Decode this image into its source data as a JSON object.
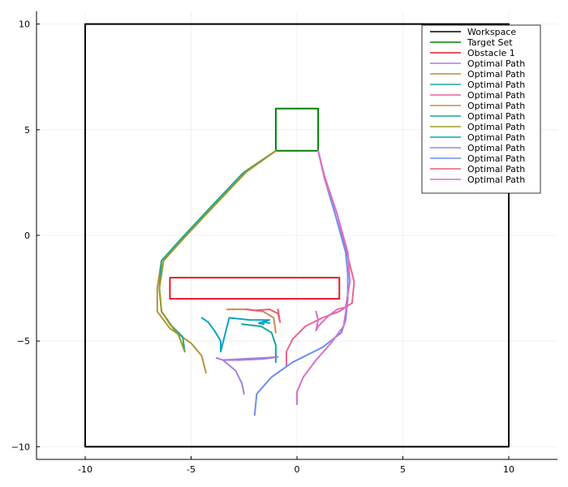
{
  "chart_data": {
    "type": "line",
    "xlim": [
      -12.3,
      12.3
    ],
    "ylim": [
      -10.6,
      10.6
    ],
    "grid": true,
    "legend_position": "top-right",
    "xticks": [
      -10,
      -5,
      0,
      5,
      10
    ],
    "yticks": [
      -10,
      -5,
      0,
      5,
      10
    ],
    "xtick_labels": [
      "-10",
      "-5",
      "0",
      "5",
      "10"
    ],
    "ytick_labels": [
      "−10",
      "−5",
      "0",
      "5",
      "10"
    ],
    "series": [
      {
        "name": "Workspace",
        "color": "#000000",
        "points": [
          [
            -10,
            -10
          ],
          [
            10,
            -10
          ],
          [
            10,
            10
          ],
          [
            -10,
            10
          ],
          [
            -10,
            -10
          ]
        ]
      },
      {
        "name": "Target Set",
        "color": "#008000",
        "points": [
          [
            -1,
            4
          ],
          [
            1,
            4
          ],
          [
            1,
            6
          ],
          [
            -1,
            6
          ],
          [
            -1,
            4
          ]
        ]
      },
      {
        "name": "Obstacle 1",
        "color": "#e8192a",
        "points": [
          [
            -6,
            -3
          ],
          [
            2,
            -3
          ],
          [
            2,
            -2
          ],
          [
            -6,
            -2
          ],
          [
            -6,
            -3
          ]
        ]
      },
      {
        "name": "Optimal Path",
        "color": "#a37fe0",
        "points": [
          [
            -2.5,
            -7.5
          ],
          [
            -2.6,
            -7.0
          ],
          [
            -2.9,
            -6.4
          ],
          [
            -3.5,
            -5.9
          ],
          [
            -2.8,
            -5.9
          ],
          [
            -1.6,
            -5.85
          ],
          [
            -0.9,
            -5.75
          ]
        ]
      },
      {
        "name": "Optimal Path",
        "color": "#b39438",
        "points": [
          [
            -1,
            4
          ],
          [
            -2.5,
            3.0
          ],
          [
            -4.2,
            1.2
          ],
          [
            -5.5,
            -0.3
          ],
          [
            -6.4,
            -1.2
          ],
          [
            -6.6,
            -2.5
          ],
          [
            -6.6,
            -3.6
          ],
          [
            -6.0,
            -4.4
          ],
          [
            -5.0,
            -5.1
          ],
          [
            -4.5,
            -5.7
          ],
          [
            -4.3,
            -6.5
          ]
        ]
      },
      {
        "name": "Optimal Path",
        "color": "#1ca99d",
        "points": [
          [
            -1,
            4
          ],
          [
            -2.6,
            2.9
          ],
          [
            -4.3,
            1.1
          ],
          [
            -5.6,
            -0.3
          ],
          [
            -6.4,
            -1.2
          ],
          [
            -6.5,
            -2.5
          ],
          [
            -6.4,
            -3.6
          ],
          [
            -5.9,
            -4.3
          ],
          [
            -5.4,
            -4.8
          ],
          [
            -5.3,
            -5.5
          ]
        ]
      },
      {
        "name": "Optimal Path",
        "color": "#e86496",
        "points": [
          [
            1,
            4
          ],
          [
            1.3,
            2.8
          ],
          [
            1.9,
            1.0
          ],
          [
            2.4,
            -1.0
          ],
          [
            2.7,
            -2.2
          ],
          [
            2.6,
            -3.2
          ],
          [
            2.0,
            -3.6
          ],
          [
            1.2,
            -3.9
          ],
          [
            0.4,
            -4.3
          ],
          [
            -0.2,
            -4.9
          ],
          [
            -0.5,
            -5.5
          ],
          [
            -0.5,
            -6.2
          ]
        ]
      },
      {
        "name": "Optimal Path",
        "color": "#c88b55",
        "points": [
          [
            -3.3,
            -3.5
          ],
          [
            -2.4,
            -3.5
          ],
          [
            -1.6,
            -3.6
          ],
          [
            -1.1,
            -3.9
          ],
          [
            -1.0,
            -4.6
          ]
        ]
      },
      {
        "name": "Optimal Path",
        "color": "#14a69a",
        "points": [
          [
            -2.6,
            -4.2
          ],
          [
            -1.7,
            -4.3
          ],
          [
            -1.2,
            -4.6
          ],
          [
            -1.0,
            -5.2
          ],
          [
            -1.0,
            -6.0
          ]
        ]
      },
      {
        "name": "Optimal Path",
        "color": "#9b9b24",
        "points": [
          [
            -1,
            4
          ],
          [
            -2.4,
            3.0
          ],
          [
            -4.1,
            1.2
          ],
          [
            -5.5,
            -0.3
          ],
          [
            -6.3,
            -1.2
          ],
          [
            -6.5,
            -2.5
          ],
          [
            -6.4,
            -3.6
          ],
          [
            -6.0,
            -4.2
          ],
          [
            -5.6,
            -4.7
          ],
          [
            -5.3,
            -5.5
          ]
        ]
      },
      {
        "name": "Optimal Path",
        "color": "#0aa2c8",
        "points": [
          [
            -4.5,
            -3.9
          ],
          [
            -4.2,
            -4.1
          ],
          [
            -3.9,
            -4.5
          ],
          [
            -3.6,
            -5.0
          ],
          [
            -3.6,
            -5.5
          ],
          [
            -3.2,
            -3.9
          ],
          [
            -2.2,
            -4.0
          ],
          [
            -1.3,
            -4.0
          ],
          [
            -1.8,
            -4.15
          ],
          [
            -1.6,
            -4.2
          ],
          [
            -1.5,
            -4.1
          ],
          [
            -1.3,
            -4.15
          ]
        ]
      },
      {
        "name": "Optimal Path",
        "color": "#a37fe0",
        "points": [
          [
            -3.8,
            -5.8
          ],
          [
            -3.5,
            -5.9
          ],
          [
            -2.6,
            -5.85
          ],
          [
            -1.6,
            -5.8
          ],
          [
            -0.9,
            -5.75
          ]
        ]
      },
      {
        "name": "Optimal Path",
        "color": "#6c8ef0",
        "points": [
          [
            1,
            4
          ],
          [
            1.3,
            2.7
          ],
          [
            1.8,
            1.0
          ],
          [
            2.3,
            -0.8
          ],
          [
            2.4,
            -1.8
          ],
          [
            2.4,
            -3.0
          ],
          [
            2.3,
            -4.0
          ],
          [
            2.1,
            -4.6
          ],
          [
            1.2,
            -5.3
          ],
          [
            -0.2,
            -6.0
          ],
          [
            -1.2,
            -6.7
          ],
          [
            -1.9,
            -7.5
          ],
          [
            -2.0,
            -8.5
          ]
        ]
      },
      {
        "name": "Optimal Path",
        "color": "#ec5a6e",
        "points": [
          [
            -2.4,
            -3.5
          ],
          [
            -2.0,
            -3.55
          ],
          [
            -1.3,
            -3.5
          ],
          [
            -0.9,
            -3.7
          ],
          [
            -0.8,
            -4.1
          ],
          [
            -0.9,
            -3.5
          ]
        ]
      },
      {
        "name": "Optimal Path",
        "color": "#d870c8",
        "points": [
          [
            1,
            4
          ],
          [
            1.3,
            2.7
          ],
          [
            1.9,
            1.0
          ],
          [
            2.4,
            -0.8
          ],
          [
            2.5,
            -2.2
          ],
          [
            2.3,
            -3.4
          ],
          [
            1.9,
            -3.5
          ],
          [
            1.5,
            -3.8
          ],
          [
            1.0,
            -4.3
          ],
          [
            0.9,
            -4.5
          ],
          [
            1.0,
            -4.0
          ],
          [
            0.9,
            -3.6
          ]
        ]
      }
    ]
  },
  "extra_paths": {
    "note_colors": [
      "#6c8ef0",
      "#d870c8"
    ],
    "blue_lower": [
      [
        2.4,
        -3.0
      ],
      [
        2.2,
        -4.3
      ],
      [
        1.6,
        -5.1
      ],
      [
        0.9,
        -5.9
      ],
      [
        0.3,
        -6.7
      ],
      [
        0.0,
        -7.4
      ],
      [
        0.0,
        -8.0
      ]
    ]
  }
}
